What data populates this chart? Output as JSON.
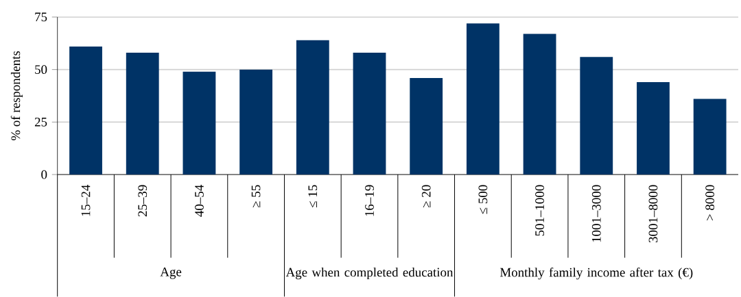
{
  "chart_data": {
    "type": "bar",
    "ylabel": "% of respondents",
    "categories": [
      "15–24",
      "25–39",
      "40–54",
      "≥ 55",
      "≤ 15",
      "16–19",
      "≥ 20",
      "≤ 500",
      "501–1000",
      "1001–3000",
      "3001–8000",
      "> 8000"
    ],
    "values": [
      61,
      58,
      49,
      50,
      64,
      58,
      46,
      72,
      67,
      56,
      44,
      36
    ],
    "color": "#003366",
    "ylim": [
      0,
      75
    ],
    "yticks": [
      0,
      25,
      50,
      75
    ],
    "grid": "y",
    "annotations": [
      "Age",
      "Age when completed education",
      "Monthly family income after tax (€)"
    ]
  }
}
